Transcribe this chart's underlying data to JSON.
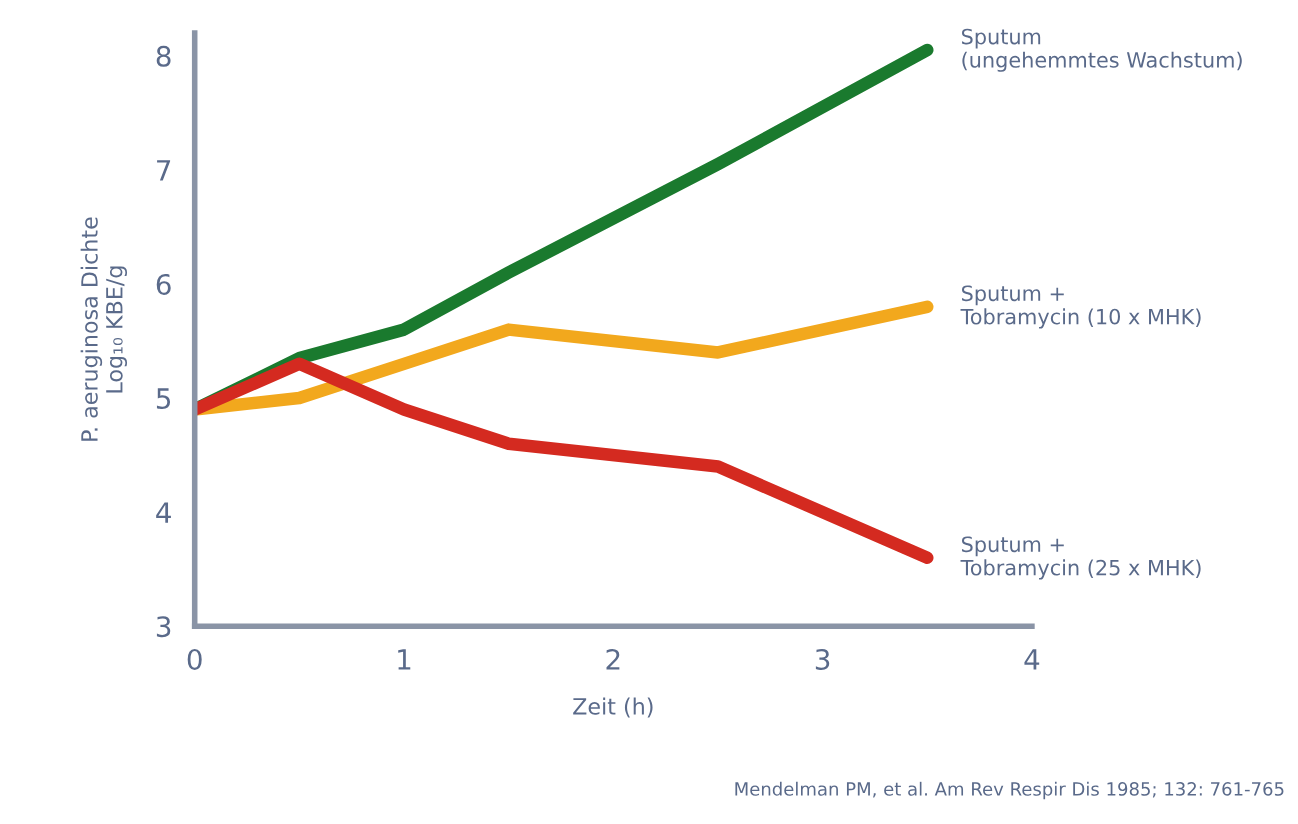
{
  "chart_data": {
    "type": "line",
    "xlabel": "Zeit (h)",
    "ylabel": "P. aeruginosa Dichte\nLog₁₀ KBE/g",
    "x": [
      0,
      0.5,
      1,
      1.5,
      2.5,
      3.5
    ],
    "series": [
      {
        "name": "Sputum\n(ungehemmtes Wachstum)",
        "color": "#1a7a2e",
        "values": [
          4.9,
          5.35,
          5.6,
          6.1,
          7.05,
          8.05
        ]
      },
      {
        "name": "Sputum +\nTobramycin (10 x MHK)",
        "color": "#f2a81d",
        "values": [
          4.9,
          5.0,
          5.3,
          5.6,
          5.4,
          5.8
        ]
      },
      {
        "name": "Sputum +\nTobramycin (25 x MHK)",
        "color": "#d42a20",
        "values": [
          4.9,
          5.3,
          4.9,
          4.6,
          4.4,
          3.6
        ]
      }
    ],
    "xlim": [
      0,
      4
    ],
    "xticks": [
      0,
      1,
      2,
      3,
      4
    ],
    "ylim": [
      3,
      8.2
    ],
    "yticks": [
      3,
      4,
      5,
      6,
      7,
      8
    ],
    "grid": false,
    "legend": false,
    "marker": "none",
    "line_style": "solid",
    "annotations": [
      "Mendelman PM, et al. Am Rev Respir Dis 1985; 132: 761-765"
    ]
  }
}
